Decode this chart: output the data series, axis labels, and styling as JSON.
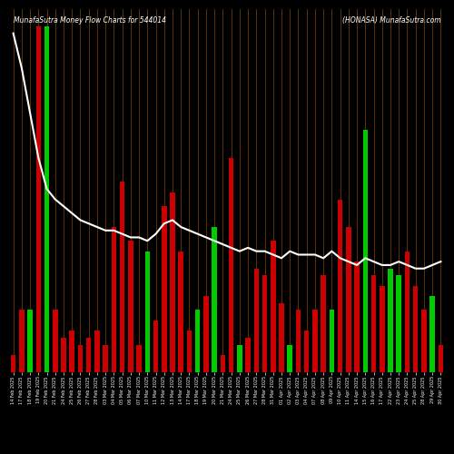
{
  "title_left": "MunafaSutra Money Flow Charts for 544014",
  "title_right": "(HONASA) MunafaSutra.com",
  "background_color": "#000000",
  "bar_color_positive": "#00cc00",
  "bar_color_negative": "#cc0000",
  "line_color": "#ffffff",
  "grid_color": "#8B4500",
  "categories": [
    "14 Feb 2025",
    "17 Feb 2025",
    "18 Feb 2025",
    "19 Feb 2025",
    "20 Feb 2025",
    "21 Feb 2025",
    "24 Feb 2025",
    "25 Feb 2025",
    "26 Feb 2025",
    "27 Feb 2025",
    "28 Feb 2025",
    "03 Mar 2025",
    "04 Mar 2025",
    "05 Mar 2025",
    "06 Mar 2025",
    "07 Mar 2025",
    "10 Mar 2025",
    "11 Mar 2025",
    "12 Mar 2025",
    "13 Mar 2025",
    "14 Mar 2025",
    "17 Mar 2025",
    "18 Mar 2025",
    "19 Mar 2025",
    "20 Mar 2025",
    "21 Mar 2025",
    "24 Mar 2025",
    "25 Mar 2025",
    "26 Mar 2025",
    "27 Mar 2025",
    "28 Mar 2025",
    "31 Mar 2025",
    "01 Apr 2025",
    "02 Apr 2025",
    "03 Apr 2025",
    "04 Apr 2025",
    "07 Apr 2025",
    "08 Apr 2025",
    "09 Apr 2025",
    "10 Apr 2025",
    "11 Apr 2025",
    "14 Apr 2025",
    "15 Apr 2025",
    "16 Apr 2025",
    "17 Apr 2025",
    "22 Apr 2025",
    "23 Apr 2025",
    "24 Apr 2025",
    "25 Apr 2025",
    "28 Apr 2025",
    "29 Apr 2025",
    "30 Apr 2025"
  ],
  "bar_values": [
    5,
    18,
    18,
    100,
    100,
    18,
    10,
    12,
    8,
    10,
    12,
    8,
    42,
    55,
    38,
    8,
    35,
    15,
    48,
    52,
    35,
    12,
    18,
    22,
    42,
    5,
    62,
    8,
    10,
    30,
    28,
    38,
    20,
    8,
    18,
    12,
    18,
    28,
    18,
    50,
    42,
    32,
    70,
    28,
    25,
    30,
    28,
    35,
    25,
    18,
    22,
    8
  ],
  "bar_colors": [
    "red",
    "red",
    "green",
    "red",
    "green",
    "red",
    "red",
    "red",
    "red",
    "red",
    "red",
    "red",
    "red",
    "red",
    "red",
    "red",
    "green",
    "red",
    "red",
    "red",
    "red",
    "red",
    "green",
    "red",
    "green",
    "red",
    "red",
    "green",
    "red",
    "red",
    "red",
    "red",
    "red",
    "green",
    "red",
    "red",
    "red",
    "red",
    "green",
    "red",
    "red",
    "red",
    "green",
    "red",
    "red",
    "green",
    "green",
    "red",
    "red",
    "red",
    "green",
    "red"
  ],
  "line_values": [
    98,
    88,
    75,
    62,
    53,
    50,
    48,
    46,
    44,
    43,
    42,
    41,
    41,
    40,
    39,
    39,
    38,
    40,
    43,
    44,
    42,
    41,
    40,
    39,
    38,
    37,
    36,
    35,
    36,
    35,
    35,
    34,
    33,
    35,
    34,
    34,
    34,
    33,
    35,
    33,
    32,
    31,
    33,
    32,
    31,
    31,
    32,
    31,
    30,
    30,
    31,
    32
  ],
  "ylim": [
    0,
    105
  ],
  "figsize": [
    5.0,
    5.0
  ],
  "dpi": 100
}
